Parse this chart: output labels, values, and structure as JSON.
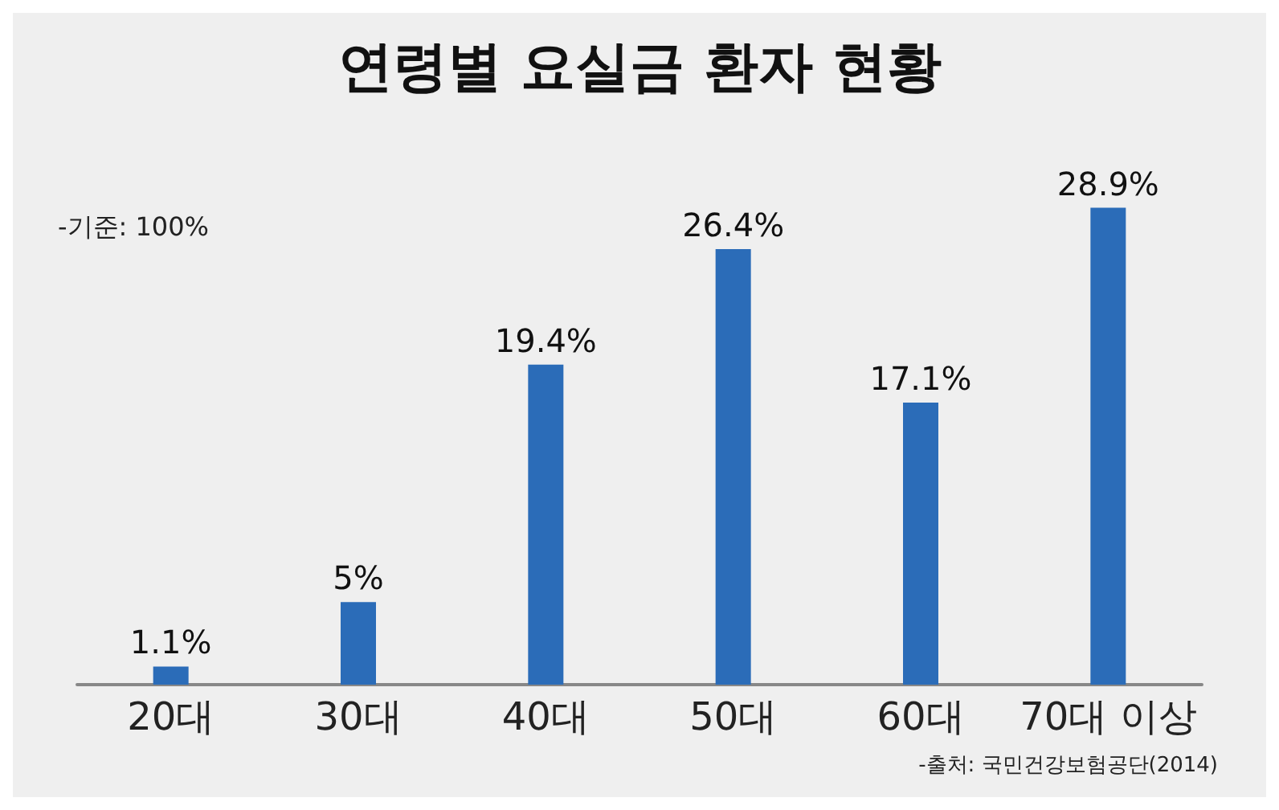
{
  "chart_data": {
    "type": "bar",
    "title": "연령별 요실금 환자 현황",
    "categories": [
      "20대",
      "30대",
      "40대",
      "50대",
      "60대",
      "70대 이상"
    ],
    "values": [
      1.1,
      5,
      19.4,
      26.4,
      17.1,
      28.9
    ],
    "value_labels": [
      "1.1%",
      "5%",
      "19.4%",
      "26.4%",
      "17.1%",
      "28.9%"
    ],
    "color": "#2b6cb8",
    "annotations": [
      "-기준: 100%",
      "-출처: 국민건강보험공단(2014)"
    ]
  }
}
